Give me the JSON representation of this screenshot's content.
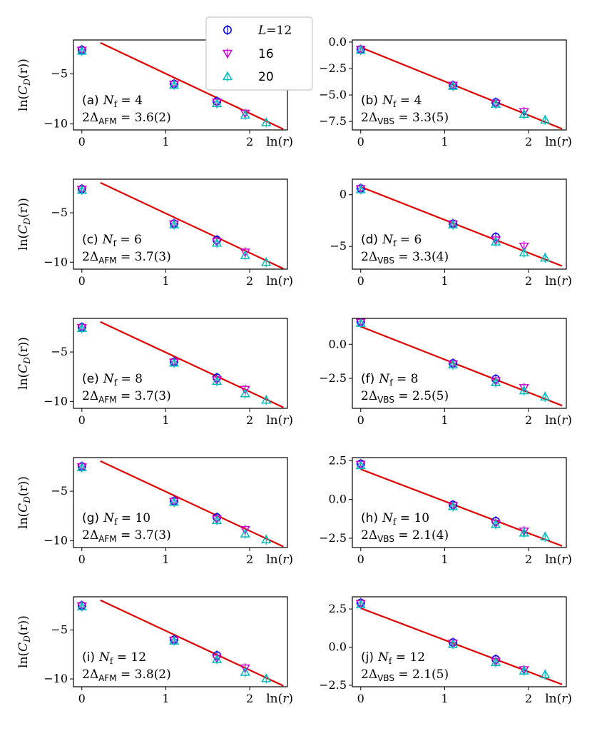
{
  "colors": {
    "fit": "#e00000",
    "L12": "#0000ee",
    "L16": "#cc00cc",
    "L20": "#00bbbb"
  },
  "legend": {
    "entries": [
      {
        "italic": "L",
        "rest": "=12",
        "marker": "circle",
        "color_key": "L12"
      },
      {
        "italic": "",
        "rest": "16",
        "marker": "tri-down",
        "color_key": "L16"
      },
      {
        "italic": "",
        "rest": "20",
        "marker": "tri-up",
        "color_key": "L20"
      }
    ]
  },
  "ylabel": {
    "pre": "ln(",
    "C": "C",
    "sub": "D",
    "post": "(r))"
  },
  "xlabel": {
    "pre": "ln(",
    "r": "r",
    "post": ")"
  },
  "chart_data": [
    {
      "type": "scatter",
      "panel_label": "(a)",
      "nf": "4",
      "delta_sub": "AFM",
      "delta_value": "3.6(2)",
      "xlim": [
        -0.1,
        2.45
      ],
      "ylim": [
        -10.6,
        -1.6
      ],
      "xticks": [
        0,
        1,
        2
      ],
      "yticks": [
        -5,
        -10
      ],
      "ytick_labels": [
        "−5",
        "−10"
      ],
      "fit": {
        "x": [
          0.22,
          2.4
        ],
        "y": [
          -1.88,
          -10.52
        ]
      },
      "series": [
        {
          "name": "L=12",
          "x": [
            0,
            1.099,
            1.609
          ],
          "y": [
            -2.6,
            -6.0,
            -7.75
          ]
        },
        {
          "name": "16",
          "x": [
            0,
            1.099,
            1.609,
            1.946
          ],
          "y": [
            -2.65,
            -6.05,
            -7.85,
            -8.95
          ]
        },
        {
          "name": "20",
          "x": [
            0,
            1.099,
            1.609,
            1.946,
            2.197
          ],
          "y": [
            -2.7,
            -6.1,
            -7.95,
            -9.1,
            -9.85
          ]
        }
      ]
    },
    {
      "type": "scatter",
      "panel_label": "(b)",
      "nf": "4",
      "delta_sub": "VBS",
      "delta_value": "3.3(5)",
      "xlim": [
        -0.1,
        2.45
      ],
      "ylim": [
        -8.3,
        0.2
      ],
      "xticks": [
        0,
        1,
        2
      ],
      "yticks": [
        0.0,
        -2.5,
        -5.0,
        -7.5
      ],
      "ytick_labels": [
        "0.0",
        "−2.5",
        "−5.0",
        "−7.5"
      ],
      "fit": {
        "x": [
          0.0,
          2.4
        ],
        "y": [
          -0.5,
          -8.2
        ]
      },
      "series": [
        {
          "name": "L=12",
          "x": [
            0,
            1.099,
            1.609
          ],
          "y": [
            -0.7,
            -4.1,
            -5.7
          ]
        },
        {
          "name": "16",
          "x": [
            0,
            1.099,
            1.609,
            1.946
          ],
          "y": [
            -0.7,
            -4.1,
            -5.8,
            -6.6
          ]
        },
        {
          "name": "20",
          "x": [
            0,
            1.099,
            1.609,
            1.946,
            2.197
          ],
          "y": [
            -0.75,
            -4.15,
            -5.85,
            -6.8,
            -7.35
          ]
        }
      ]
    },
    {
      "type": "scatter",
      "panel_label": "(c)",
      "nf": "6",
      "delta_sub": "AFM",
      "delta_value": "3.7(3)",
      "xlim": [
        -0.1,
        2.45
      ],
      "ylim": [
        -10.7,
        -1.6
      ],
      "xticks": [
        0,
        1,
        2
      ],
      "yticks": [
        -5,
        -10
      ],
      "ytick_labels": [
        "−5",
        "−10"
      ],
      "fit": {
        "x": [
          0.22,
          2.4
        ],
        "y": [
          -1.95,
          -10.65
        ]
      },
      "series": [
        {
          "name": "L=12",
          "x": [
            0,
            1.099,
            1.609
          ],
          "y": [
            -2.6,
            -6.1,
            -7.75
          ]
        },
        {
          "name": "16",
          "x": [
            0,
            1.099,
            1.609,
            1.946
          ],
          "y": [
            -2.65,
            -6.15,
            -7.95,
            -9.0
          ]
        },
        {
          "name": "20",
          "x": [
            0,
            1.099,
            1.609,
            1.946,
            2.197
          ],
          "y": [
            -2.7,
            -6.2,
            -8.05,
            -9.3,
            -10.0
          ]
        }
      ]
    },
    {
      "type": "scatter",
      "panel_label": "(d)",
      "nf": "6",
      "delta_sub": "VBS",
      "delta_value": "3.3(4)",
      "xlim": [
        -0.1,
        2.45
      ],
      "ylim": [
        -7.2,
        1.5
      ],
      "xticks": [
        0,
        1,
        2
      ],
      "yticks": [
        0,
        -5
      ],
      "ytick_labels": [
        "0",
        "−5"
      ],
      "fit": {
        "x": [
          0.0,
          2.4
        ],
        "y": [
          0.75,
          -6.9
        ]
      },
      "series": [
        {
          "name": "L=12",
          "x": [
            0,
            1.099,
            1.609
          ],
          "y": [
            0.6,
            -2.8,
            -4.1
          ]
        },
        {
          "name": "16",
          "x": [
            0,
            1.099,
            1.609,
            1.946
          ],
          "y": [
            0.55,
            -2.85,
            -4.4,
            -5.0
          ]
        },
        {
          "name": "20",
          "x": [
            0,
            1.099,
            1.609,
            1.946,
            2.197
          ],
          "y": [
            0.5,
            -2.9,
            -4.55,
            -5.6,
            -6.1
          ]
        }
      ]
    },
    {
      "type": "scatter",
      "panel_label": "(e)",
      "nf": "8",
      "delta_sub": "AFM",
      "delta_value": "3.7(3)",
      "xlim": [
        -0.1,
        2.45
      ],
      "ylim": [
        -10.7,
        -1.6
      ],
      "xticks": [
        0,
        1,
        2
      ],
      "yticks": [
        -5,
        -10
      ],
      "ytick_labels": [
        "−5",
        "−10"
      ],
      "fit": {
        "x": [
          0.22,
          2.4
        ],
        "y": [
          -1.95,
          -10.6
        ]
      },
      "series": [
        {
          "name": "L=12",
          "x": [
            0,
            1.099,
            1.609
          ],
          "y": [
            -2.5,
            -6.0,
            -7.6
          ]
        },
        {
          "name": "16",
          "x": [
            0,
            1.099,
            1.609,
            1.946
          ],
          "y": [
            -2.55,
            -6.05,
            -7.85,
            -8.8
          ]
        },
        {
          "name": "20",
          "x": [
            0,
            1.099,
            1.609,
            1.946,
            2.197
          ],
          "y": [
            -2.6,
            -6.1,
            -7.95,
            -9.2,
            -9.85
          ]
        }
      ]
    },
    {
      "type": "scatter",
      "panel_label": "(f)",
      "nf": "8",
      "delta_sub": "VBS",
      "delta_value": "2.5(5)",
      "xlim": [
        -0.1,
        2.45
      ],
      "ylim": [
        -4.7,
        1.9
      ],
      "xticks": [
        0,
        1,
        2
      ],
      "yticks": [
        0.0,
        -2.5
      ],
      "ytick_labels": [
        "0.0",
        "−2.5"
      ],
      "fit": {
        "x": [
          0.0,
          2.4
        ],
        "y": [
          1.3,
          -4.5
        ]
      },
      "series": [
        {
          "name": "L=12",
          "x": [
            0,
            1.099,
            1.609
          ],
          "y": [
            1.65,
            -1.4,
            -2.55
          ]
        },
        {
          "name": "16",
          "x": [
            0,
            1.099,
            1.609,
            1.946
          ],
          "y": [
            1.6,
            -1.45,
            -2.7,
            -3.2
          ]
        },
        {
          "name": "20",
          "x": [
            0,
            1.099,
            1.609,
            1.946,
            2.197
          ],
          "y": [
            1.55,
            -1.5,
            -2.8,
            -3.4,
            -3.85
          ]
        }
      ]
    },
    {
      "type": "scatter",
      "panel_label": "(g)",
      "nf": "10",
      "delta_sub": "AFM",
      "delta_value": "3.7(3)",
      "xlim": [
        -0.1,
        2.45
      ],
      "ylim": [
        -10.7,
        -1.6
      ],
      "xticks": [
        0,
        1,
        2
      ],
      "yticks": [
        -5,
        -10
      ],
      "ytick_labels": [
        "−5",
        "−10"
      ],
      "fit": {
        "x": [
          0.22,
          2.4
        ],
        "y": [
          -1.95,
          -10.6
        ]
      },
      "series": [
        {
          "name": "L=12",
          "x": [
            0,
            1.099,
            1.609
          ],
          "y": [
            -2.5,
            -6.0,
            -7.65
          ]
        },
        {
          "name": "16",
          "x": [
            0,
            1.099,
            1.609,
            1.946
          ],
          "y": [
            -2.55,
            -6.05,
            -7.85,
            -8.9
          ]
        },
        {
          "name": "20",
          "x": [
            0,
            1.099,
            1.609,
            1.946,
            2.197
          ],
          "y": [
            -2.6,
            -6.1,
            -7.95,
            -9.3,
            -9.9
          ]
        }
      ]
    },
    {
      "type": "scatter",
      "panel_label": "(h)",
      "nf": "10",
      "delta_sub": "VBS",
      "delta_value": "2.1(4)",
      "xlim": [
        -0.1,
        2.45
      ],
      "ylim": [
        -3.1,
        2.7
      ],
      "xticks": [
        0,
        1,
        2
      ],
      "yticks": [
        2.5,
        0.0,
        -2.5
      ],
      "ytick_labels": [
        "2.5",
        "0.0",
        "−2.5"
      ],
      "fit": {
        "x": [
          0.0,
          2.4
        ],
        "y": [
          1.95,
          -3.0
        ]
      },
      "series": [
        {
          "name": "L=12",
          "x": [
            0,
            1.099,
            1.609
          ],
          "y": [
            2.3,
            -0.35,
            -1.4
          ]
        },
        {
          "name": "16",
          "x": [
            0,
            1.099,
            1.609,
            1.946
          ],
          "y": [
            2.25,
            -0.4,
            -1.55,
            -2.05
          ]
        },
        {
          "name": "20",
          "x": [
            0,
            1.099,
            1.609,
            1.946,
            2.197
          ],
          "y": [
            2.2,
            -0.45,
            -1.6,
            -2.15,
            -2.4
          ]
        }
      ]
    },
    {
      "type": "scatter",
      "panel_label": "(i)",
      "nf": "12",
      "delta_sub": "AFM",
      "delta_value": "3.8(2)",
      "xlim": [
        -0.1,
        2.45
      ],
      "ylim": [
        -10.8,
        -1.6
      ],
      "xticks": [
        0,
        1,
        2
      ],
      "yticks": [
        -5,
        -10
      ],
      "ytick_labels": [
        "−5",
        "−10"
      ],
      "fit": {
        "x": [
          0.22,
          2.4
        ],
        "y": [
          -1.95,
          -10.7
        ]
      },
      "series": [
        {
          "name": "L=12",
          "x": [
            0,
            1.099,
            1.609
          ],
          "y": [
            -2.5,
            -6.0,
            -7.6
          ]
        },
        {
          "name": "16",
          "x": [
            0,
            1.099,
            1.609,
            1.946
          ],
          "y": [
            -2.55,
            -6.05,
            -7.9,
            -8.9
          ]
        },
        {
          "name": "20",
          "x": [
            0,
            1.099,
            1.609,
            1.946,
            2.197
          ],
          "y": [
            -2.6,
            -6.1,
            -8.0,
            -9.3,
            -9.95
          ]
        }
      ]
    },
    {
      "type": "scatter",
      "panel_label": "(j)",
      "nf": "12",
      "delta_sub": "VBS",
      "delta_value": "2.1(5)",
      "xlim": [
        -0.1,
        2.45
      ],
      "ylim": [
        -2.6,
        3.3
      ],
      "xticks": [
        0,
        1,
        2
      ],
      "yticks": [
        2.5,
        0.0,
        -2.5
      ],
      "ytick_labels": [
        "2.5",
        "0.0",
        "−2.5"
      ],
      "fit": {
        "x": [
          0.0,
          2.4
        ],
        "y": [
          2.55,
          -2.45
        ]
      },
      "series": [
        {
          "name": "L=12",
          "x": [
            0,
            1.099,
            1.609
          ],
          "y": [
            2.9,
            0.3,
            -0.8
          ]
        },
        {
          "name": "16",
          "x": [
            0,
            1.099,
            1.609,
            1.946
          ],
          "y": [
            2.85,
            0.25,
            -0.95,
            -1.5
          ]
        },
        {
          "name": "20",
          "x": [
            0,
            1.099,
            1.609,
            1.946,
            2.197
          ],
          "y": [
            2.8,
            0.2,
            -1.0,
            -1.55,
            -1.8
          ]
        }
      ]
    }
  ]
}
